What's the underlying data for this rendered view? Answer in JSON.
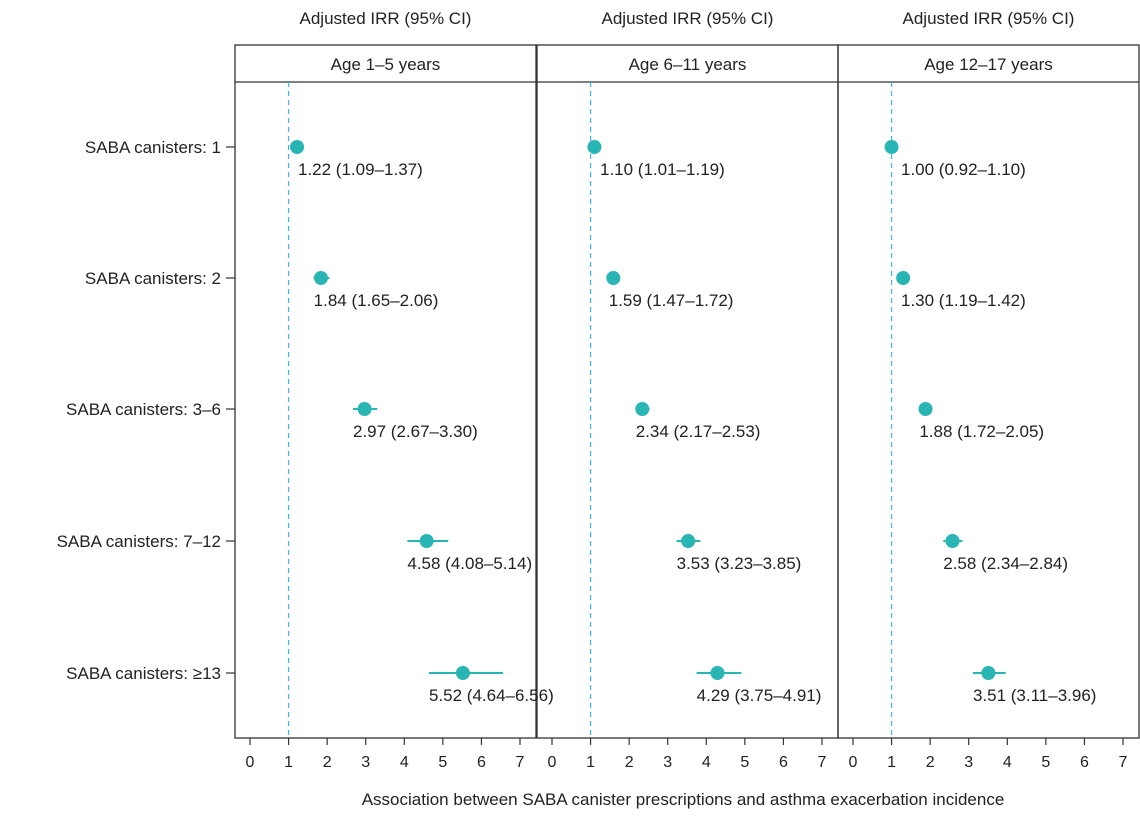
{
  "chart_data": {
    "type": "forest",
    "xlabel": "Association between SABA canister prescriptions and asthma exacerbation incidence",
    "column_header": "Adjusted IRR (95% CI)",
    "categories": [
      "SABA canisters: 1",
      "SABA canisters: 2",
      "SABA canisters: 3–6",
      "SABA canisters: 7–12",
      "SABA canisters: ≥13"
    ],
    "xlim": [
      0,
      7
    ],
    "xticks": [
      "0",
      "1",
      "2",
      "3",
      "4",
      "5",
      "6",
      "7"
    ],
    "reference_line": 1,
    "colors": {
      "marker": "#2ab5b5",
      "reference": "#4fb3e6",
      "frame": "#333333"
    },
    "panels": [
      {
        "title": "Age 1–5 years",
        "points": [
          {
            "irr": 1.22,
            "lo": 1.09,
            "hi": 1.37,
            "label": "1.22 (1.09–1.37)"
          },
          {
            "irr": 1.84,
            "lo": 1.65,
            "hi": 2.06,
            "label": "1.84 (1.65–2.06)"
          },
          {
            "irr": 2.97,
            "lo": 2.67,
            "hi": 3.3,
            "label": "2.97 (2.67–3.30)"
          },
          {
            "irr": 4.58,
            "lo": 4.08,
            "hi": 5.14,
            "label": "4.58 (4.08–5.14)"
          },
          {
            "irr": 5.52,
            "lo": 4.64,
            "hi": 6.56,
            "label": "5.52 (4.64–6.56)"
          }
        ]
      },
      {
        "title": "Age 6–11 years",
        "points": [
          {
            "irr": 1.1,
            "lo": 1.01,
            "hi": 1.19,
            "label": "1.10 (1.01–1.19)"
          },
          {
            "irr": 1.59,
            "lo": 1.47,
            "hi": 1.72,
            "label": "1.59 (1.47–1.72)"
          },
          {
            "irr": 2.34,
            "lo": 2.17,
            "hi": 2.53,
            "label": "2.34 (2.17–2.53)"
          },
          {
            "irr": 3.53,
            "lo": 3.23,
            "hi": 3.85,
            "label": "3.53 (3.23–3.85)"
          },
          {
            "irr": 4.29,
            "lo": 3.75,
            "hi": 4.91,
            "label": "4.29 (3.75–4.91)"
          }
        ]
      },
      {
        "title": "Age 12–17 years",
        "points": [
          {
            "irr": 1.0,
            "lo": 0.92,
            "hi": 1.1,
            "label": "1.00 (0.92–1.10)"
          },
          {
            "irr": 1.3,
            "lo": 1.19,
            "hi": 1.42,
            "label": "1.30 (1.19–1.42)"
          },
          {
            "irr": 1.88,
            "lo": 1.72,
            "hi": 2.05,
            "label": "1.88 (1.72–2.05)"
          },
          {
            "irr": 2.58,
            "lo": 2.34,
            "hi": 2.84,
            "label": "2.58 (2.34–2.84)"
          },
          {
            "irr": 3.51,
            "lo": 3.11,
            "hi": 3.96,
            "label": "3.51 (3.11–3.96)"
          }
        ]
      }
    ]
  }
}
